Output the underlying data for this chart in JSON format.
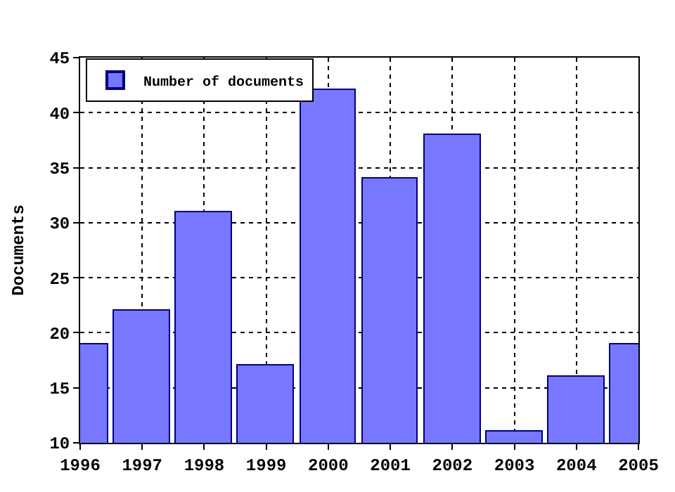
{
  "chart_data": {
    "type": "bar",
    "ylabel": "Documents",
    "x": [
      1996,
      1997,
      1998,
      1999,
      2000,
      2001,
      2002,
      2003,
      2004,
      2005
    ],
    "series": [
      {
        "name": "Number of documents",
        "color": "#7777ff",
        "values": [
          19,
          22,
          31,
          17,
          42,
          34,
          38,
          11,
          16,
          19
        ]
      }
    ],
    "xlim": [
      1996,
      2005
    ],
    "xticks": [
      1996,
      1997,
      1998,
      1999,
      2000,
      2001,
      2002,
      2003,
      2004,
      2005
    ],
    "ylim": [
      10,
      45
    ],
    "yticks": [
      10,
      15,
      20,
      25,
      30,
      35,
      40,
      45
    ],
    "grid": true,
    "legend": "top left"
  }
}
